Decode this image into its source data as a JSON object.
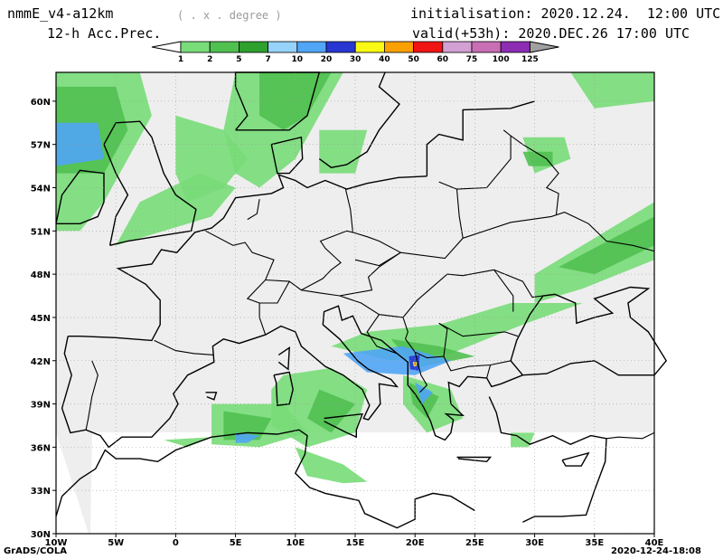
{
  "header": {
    "model": "nmmE_v4-a12km",
    "projection": "( . x . degree )",
    "field": "12-h Acc.Prec.",
    "init": "initialisation: 2020.12.24.  12:00 UTC",
    "valid": "valid(+53h): 2020.DEC.26 17:00 UTC"
  },
  "colorbar": {
    "levels": [
      "1",
      "2",
      "5",
      "7",
      "10",
      "20",
      "30",
      "40",
      "50",
      "60",
      "75",
      "100",
      "125"
    ],
    "colors": [
      "#b4fab4",
      "#78dc78",
      "#50c050",
      "#2ea02e",
      "#96d2fa",
      "#50a5f5",
      "#2837d2",
      "#fafa14",
      "#faa000",
      "#f01414",
      "#d2a0d2",
      "#c86eb4",
      "#8c2db4",
      "#a0a0a0"
    ]
  },
  "map": {
    "lon_labels": [
      "10W",
      "5W",
      "0",
      "5E",
      "10E",
      "15E",
      "20E",
      "25E",
      "30E",
      "35E",
      "40E"
    ],
    "lat_labels": [
      "30N",
      "33N",
      "36N",
      "39N",
      "42N",
      "45N",
      "48N",
      "51N",
      "54N",
      "57N",
      "60N"
    ],
    "domain_color": "#eeeeee",
    "coast_color": "#000000"
  },
  "footer": {
    "software": "GrADS/COLA",
    "timestamp": "2020-12-24-18:08"
  }
}
